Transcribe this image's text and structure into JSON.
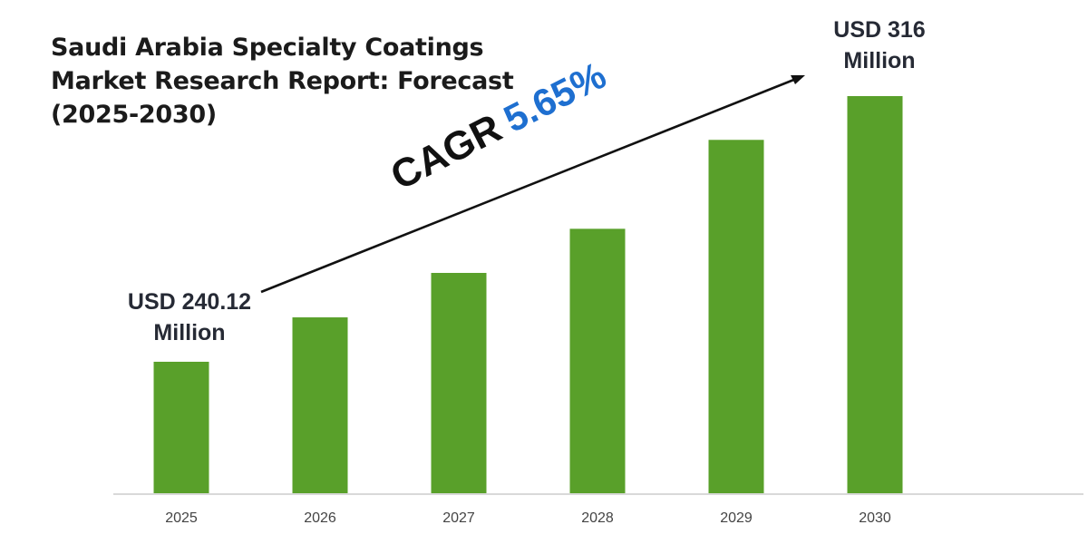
{
  "chart_data": {
    "type": "bar",
    "title_lines": [
      "Saudi Arabia Specialty Coatings",
      "Market Research Report: Forecast",
      "(2025-2030)"
    ],
    "categories": [
      "2025",
      "2026",
      "2027",
      "2028",
      "2029",
      "2030"
    ],
    "values": [
      240.12,
      252.8,
      265.5,
      278.1,
      303.5,
      316
    ],
    "value_unit": "USD Million",
    "values_note": "Only 2025 (240.12) and 2030 (316) are labelled; intermediate values are estimated from bar heights",
    "bar_color": "#59a02a",
    "xlabel": "",
    "ylabel": "",
    "grid": false,
    "legend": "none",
    "annotations": {
      "start": {
        "line1": "USD 240.12",
        "line2": "Million"
      },
      "end": {
        "line1": "USD 316",
        "line2": "Million"
      },
      "cagr_label": "CAGR",
      "cagr_value": "5.65%"
    },
    "colors": {
      "cagr_value": "#1e6fd0",
      "text": "#262a35",
      "axis": "#d9d9d9"
    }
  }
}
